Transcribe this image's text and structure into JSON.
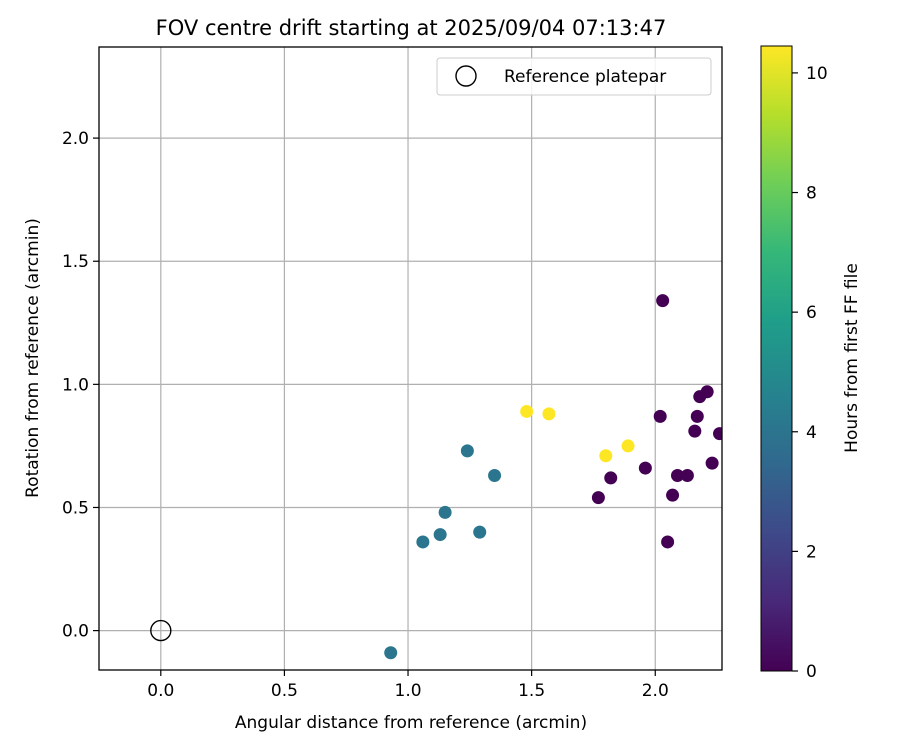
{
  "chart_data": {
    "type": "scatter",
    "title": "FOV centre drift starting at 2025/09/04 07:13:47",
    "xlabel": "Angular distance from reference (arcmin)",
    "ylabel": "Rotation from reference (arcmin)",
    "xlim": [
      -0.25,
      2.27
    ],
    "ylim": [
      -0.16,
      2.37
    ],
    "xticks": [
      0.0,
      0.5,
      1.0,
      1.5,
      2.0
    ],
    "xtick_labels": [
      "0.0",
      "0.5",
      "1.0",
      "1.5",
      "2.0"
    ],
    "yticks": [
      0.0,
      0.5,
      1.0,
      1.5,
      2.0
    ],
    "ytick_labels": [
      "0.0",
      "0.5",
      "1.0",
      "1.5",
      "2.0"
    ],
    "grid": true,
    "legend": {
      "placement": "top-right",
      "entries": [
        "Reference platepar"
      ]
    },
    "reference_point": {
      "x": 0.0,
      "y": 0.0,
      "marker": "hollow-circle"
    },
    "colorbar": {
      "label": "Hours from first FF file",
      "colormap": "viridis",
      "range": [
        0,
        10.45
      ],
      "ticks": [
        0,
        2,
        4,
        6,
        8,
        10
      ],
      "tick_labels": [
        "0",
        "2",
        "4",
        "6",
        "8",
        "10"
      ]
    },
    "points": [
      {
        "x": 2.03,
        "y": 1.34,
        "hours": 0.0
      },
      {
        "x": 2.21,
        "y": 0.97,
        "hours": 0.0
      },
      {
        "x": 2.18,
        "y": 0.95,
        "hours": 0.0
      },
      {
        "x": 2.02,
        "y": 0.87,
        "hours": 0.0
      },
      {
        "x": 2.17,
        "y": 0.87,
        "hours": 0.0
      },
      {
        "x": 2.16,
        "y": 0.81,
        "hours": 0.0
      },
      {
        "x": 2.26,
        "y": 0.8,
        "hours": 0.0
      },
      {
        "x": 2.23,
        "y": 0.68,
        "hours": 0.0
      },
      {
        "x": 1.96,
        "y": 0.66,
        "hours": 0.0
      },
      {
        "x": 2.09,
        "y": 0.63,
        "hours": 0.0
      },
      {
        "x": 2.13,
        "y": 0.63,
        "hours": 0.0
      },
      {
        "x": 1.82,
        "y": 0.62,
        "hours": 0.0
      },
      {
        "x": 2.07,
        "y": 0.55,
        "hours": 0.0
      },
      {
        "x": 1.77,
        "y": 0.54,
        "hours": 0.0
      },
      {
        "x": 2.05,
        "y": 0.36,
        "hours": 0.0
      },
      {
        "x": 1.48,
        "y": 0.89,
        "hours": 10.45
      },
      {
        "x": 1.57,
        "y": 0.88,
        "hours": 10.45
      },
      {
        "x": 1.89,
        "y": 0.75,
        "hours": 10.45
      },
      {
        "x": 1.8,
        "y": 0.71,
        "hours": 10.45
      },
      {
        "x": 1.24,
        "y": 0.73,
        "hours": 4.1
      },
      {
        "x": 1.35,
        "y": 0.63,
        "hours": 4.1
      },
      {
        "x": 1.15,
        "y": 0.48,
        "hours": 4.1
      },
      {
        "x": 1.29,
        "y": 0.4,
        "hours": 4.1
      },
      {
        "x": 1.13,
        "y": 0.39,
        "hours": 4.1
      },
      {
        "x": 1.06,
        "y": 0.36,
        "hours": 4.1
      },
      {
        "x": 0.93,
        "y": -0.09,
        "hours": 4.1
      }
    ]
  }
}
